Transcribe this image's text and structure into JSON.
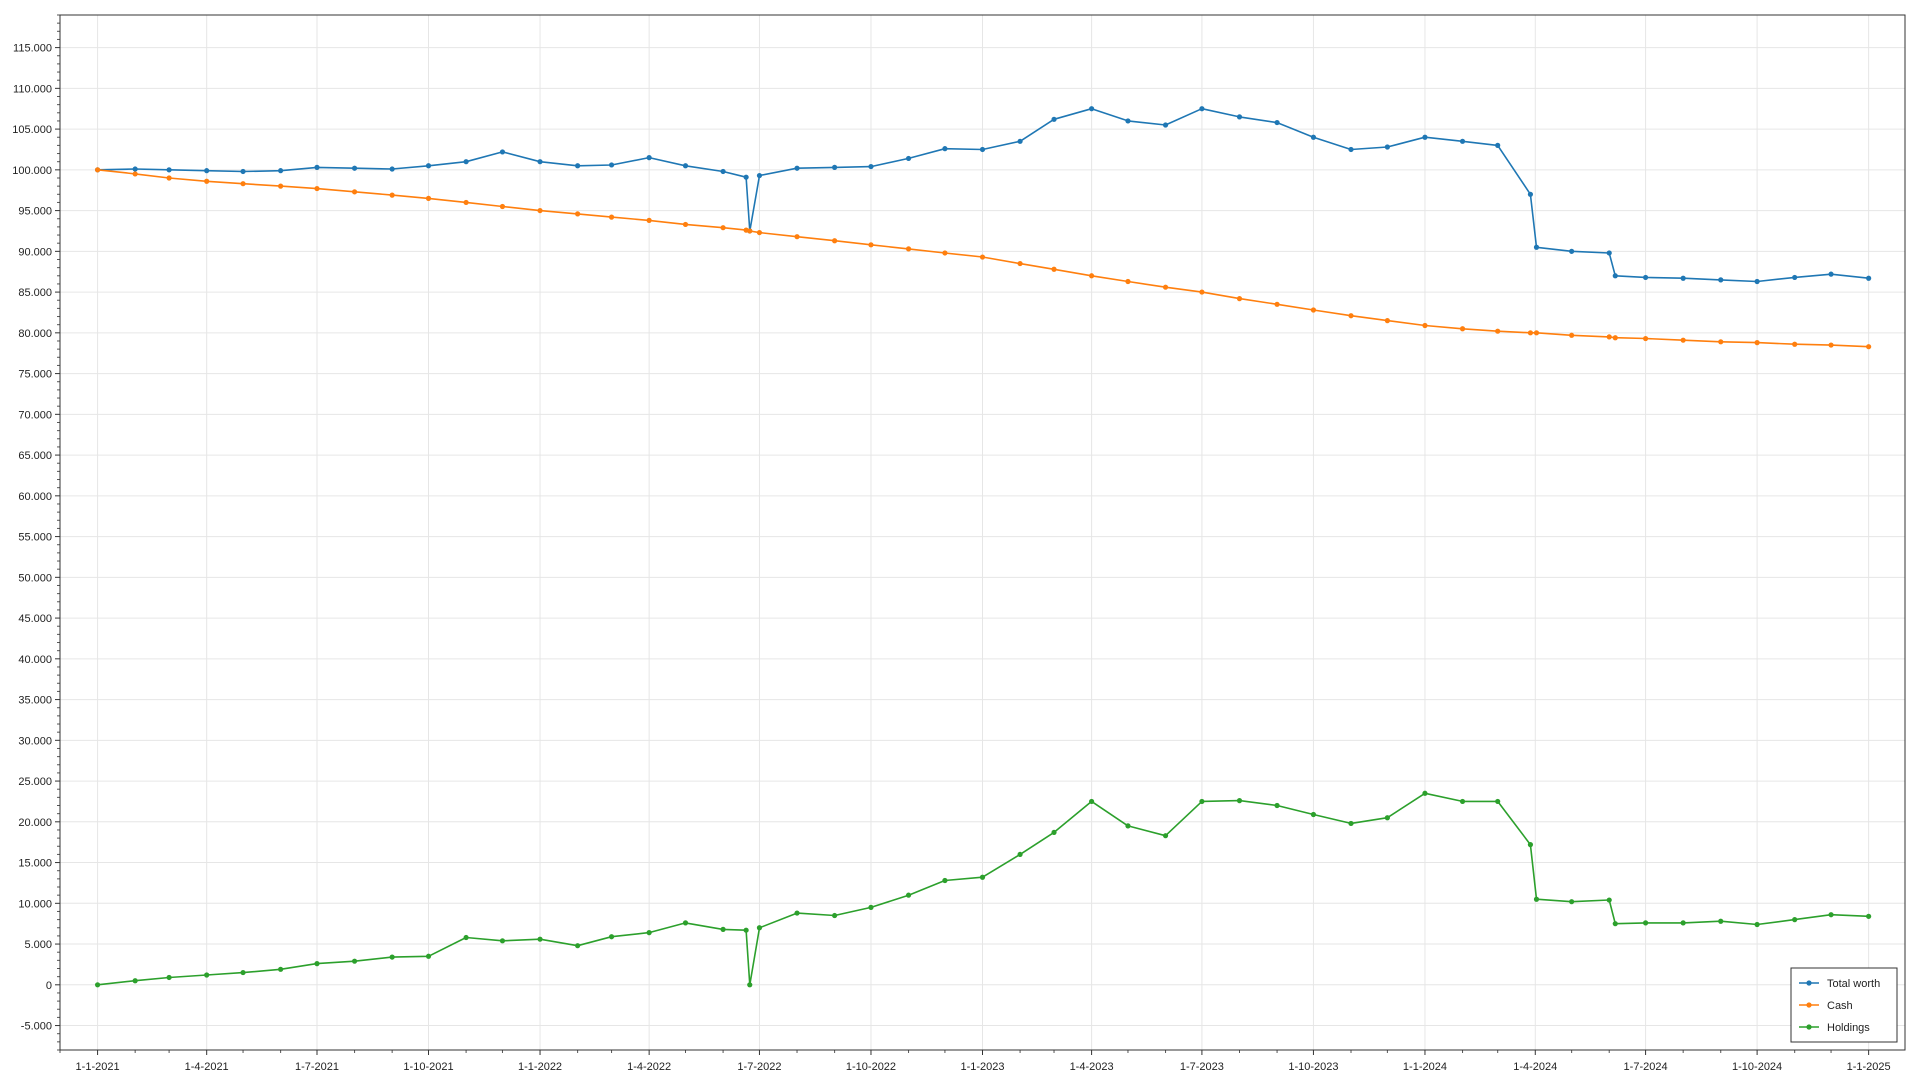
{
  "chart_data": {
    "type": "line",
    "title": "",
    "xlabel": "",
    "ylabel": "",
    "x_range": [
      "2020-12-01",
      "2025-01-31"
    ],
    "ylim": [
      -8000,
      119000
    ],
    "grid": true,
    "legend_position": "bottom-right",
    "y_ticks": [
      -5000,
      0,
      5000,
      10000,
      15000,
      20000,
      25000,
      30000,
      35000,
      40000,
      45000,
      50000,
      55000,
      60000,
      65000,
      70000,
      75000,
      80000,
      85000,
      90000,
      95000,
      100000,
      105000,
      110000,
      115000
    ],
    "y_tick_labels": [
      "-5.000",
      "0",
      "5.000",
      "10.000",
      "15.000",
      "20.000",
      "25.000",
      "30.000",
      "35.000",
      "40.000",
      "45.000",
      "50.000",
      "55.000",
      "60.000",
      "65.000",
      "70.000",
      "75.000",
      "80.000",
      "85.000",
      "90.000",
      "95.000",
      "100.000",
      "105.000",
      "110.000",
      "115.000"
    ],
    "x_ticks": [
      "2021-01-01",
      "2021-04-01",
      "2021-07-01",
      "2021-10-01",
      "2022-01-01",
      "2022-04-01",
      "2022-07-01",
      "2022-10-01",
      "2023-01-01",
      "2023-04-01",
      "2023-07-01",
      "2023-10-01",
      "2024-01-01",
      "2024-04-01",
      "2024-07-01",
      "2024-10-01",
      "2025-01-01"
    ],
    "x_tick_labels": [
      "1-1-2021",
      "1-4-2021",
      "1-7-2021",
      "1-10-2021",
      "1-1-2022",
      "1-4-2022",
      "1-7-2022",
      "1-10-2022",
      "1-1-2023",
      "1-4-2023",
      "1-7-2023",
      "1-10-2023",
      "1-1-2024",
      "1-4-2024",
      "1-7-2024",
      "1-10-2024",
      "1-1-2025"
    ],
    "x": [
      "2021-01-01",
      "2021-02-01",
      "2021-03-01",
      "2021-04-01",
      "2021-05-01",
      "2021-06-01",
      "2021-07-01",
      "2021-08-01",
      "2021-09-01",
      "2021-10-01",
      "2021-11-01",
      "2021-12-01",
      "2022-01-01",
      "2022-02-01",
      "2022-03-01",
      "2022-04-01",
      "2022-05-01",
      "2022-06-01",
      "2022-06-20",
      "2022-06-23",
      "2022-07-01",
      "2022-08-01",
      "2022-09-01",
      "2022-10-01",
      "2022-11-01",
      "2022-12-01",
      "2023-01-01",
      "2023-02-01",
      "2023-03-01",
      "2023-04-01",
      "2023-05-01",
      "2023-06-01",
      "2023-07-01",
      "2023-08-01",
      "2023-09-01",
      "2023-10-01",
      "2023-11-01",
      "2023-12-01",
      "2024-01-01",
      "2024-02-01",
      "2024-03-01",
      "2024-03-28",
      "2024-04-02",
      "2024-05-01",
      "2024-06-01",
      "2024-06-06",
      "2024-07-01",
      "2024-08-01",
      "2024-09-01",
      "2024-10-01",
      "2024-11-01",
      "2024-12-01",
      "2025-01-01"
    ],
    "series": [
      {
        "name": "Total worth",
        "color": "#1f77b4",
        "values": [
          100000,
          100100,
          100000,
          99900,
          99800,
          99900,
          100300,
          100200,
          100100,
          100500,
          101000,
          102200,
          101000,
          100500,
          100600,
          101500,
          100500,
          99800,
          99100,
          92500,
          99300,
          100200,
          100300,
          100400,
          101400,
          102600,
          102500,
          103500,
          106200,
          107500,
          106000,
          105500,
          107500,
          106500,
          105800,
          104000,
          102500,
          102800,
          104000,
          103500,
          103000,
          97000,
          90500,
          90000,
          89800,
          87000,
          86800,
          86700,
          86500,
          86300,
          86800,
          87200,
          86700
        ]
      },
      {
        "name": "Cash",
        "color": "#ff7f0e",
        "values": [
          100000,
          99500,
          99000,
          98600,
          98300,
          98000,
          97700,
          97300,
          96900,
          96500,
          96000,
          95500,
          95000,
          94600,
          94200,
          93800,
          93300,
          92900,
          92600,
          92500,
          92300,
          91800,
          91300,
          90800,
          90300,
          89800,
          89300,
          88500,
          87800,
          87000,
          86300,
          85600,
          85000,
          84200,
          83500,
          82800,
          82100,
          81500,
          80900,
          80500,
          80200,
          80000,
          80000,
          79700,
          79500,
          79400,
          79300,
          79100,
          78900,
          78800,
          78600,
          78500,
          78300
        ]
      },
      {
        "name": "Holdings",
        "color": "#2ca02c",
        "values": [
          0,
          500,
          900,
          1200,
          1500,
          1900,
          2600,
          2900,
          3400,
          3500,
          5800,
          5400,
          5600,
          4800,
          5900,
          6400,
          7600,
          6800,
          6700,
          0,
          7000,
          8800,
          8500,
          9500,
          11000,
          12800,
          13200,
          16000,
          18700,
          22500,
          19500,
          18300,
          22500,
          22600,
          22000,
          20900,
          19800,
          20500,
          23500,
          22500,
          22500,
          17200,
          10500,
          10200,
          10400,
          7500,
          7600,
          7600,
          7800,
          7400,
          8000,
          8600,
          8400
        ]
      }
    ]
  }
}
